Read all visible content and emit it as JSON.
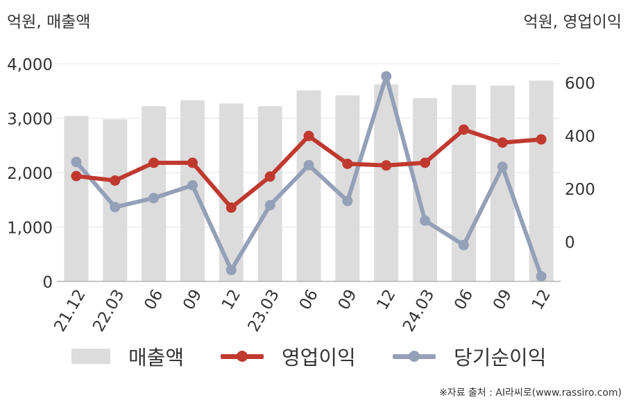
{
  "units": {
    "left": "억원, 매출액",
    "right": "억원, 영업이익"
  },
  "source": "※자료 출처 : AI라씨로(www.rassiro.com)",
  "colors": {
    "revenue": "#dcdcdc",
    "operating_profit": "#c0392f",
    "net_income": "#94a0b8",
    "grid": "#e6e6e6",
    "axis": "#b4b4b4",
    "text": "#333333"
  },
  "chart_data": {
    "type": "bar+line",
    "categories": [
      "21.12",
      "22.03",
      "06",
      "09",
      "12",
      "23.03",
      "06",
      "09",
      "12",
      "24.03",
      "06",
      "09",
      "12"
    ],
    "left_axis": {
      "ticks": [
        "0",
        "1,000",
        "2,000",
        "3,000",
        "4,000"
      ],
      "ylim": [
        0,
        4000
      ]
    },
    "right_axis": {
      "ticks": [
        "0",
        "200",
        "400",
        "600"
      ],
      "ylim": [
        -150,
        670
      ]
    },
    "series": [
      {
        "name": "매출액",
        "type": "bar",
        "axis": "left",
        "values": [
          3040,
          2980,
          3220,
          3330,
          3270,
          3220,
          3510,
          3420,
          3620,
          3370,
          3610,
          3600,
          3690
        ]
      },
      {
        "name": "영업이익",
        "type": "line",
        "axis": "right",
        "values": [
          247,
          230,
          297,
          297,
          128,
          245,
          398,
          293,
          287,
          297,
          422,
          373,
          385
        ]
      },
      {
        "name": "당기순이익",
        "type": "line",
        "axis": "right",
        "values": [
          300,
          130,
          164,
          212,
          -107,
          137,
          288,
          153,
          623,
          79,
          -13,
          282,
          -131
        ]
      }
    ],
    "grid": true,
    "legend_position": "bottom"
  }
}
